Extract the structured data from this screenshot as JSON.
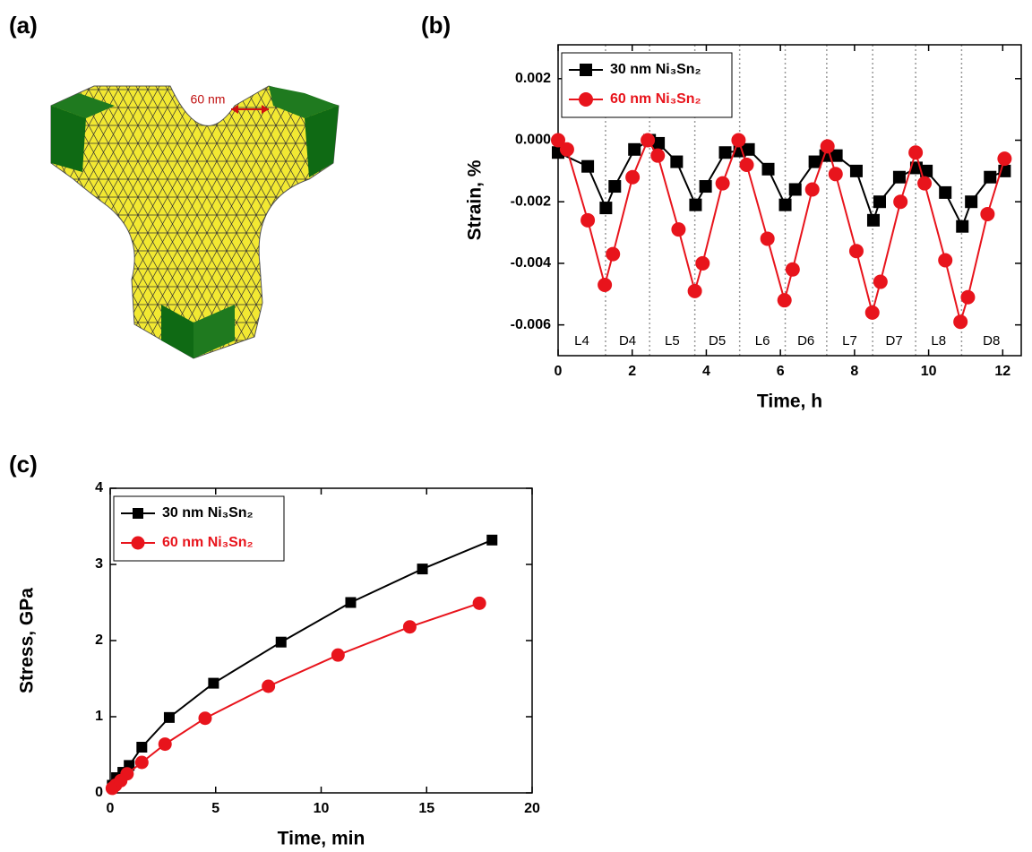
{
  "figure_a": {
    "label": "(a)",
    "annotation": "60 nm"
  },
  "chart_data": [
    {
      "type": "line",
      "label": "(b)",
      "x_label": "Time, h",
      "y_label": "Strain, %",
      "xlim": [
        0,
        12.5
      ],
      "xticks": [
        0,
        2,
        4,
        6,
        8,
        10,
        12
      ],
      "ylim": [
        -0.007,
        0.0031
      ],
      "yticks": [
        -0.006,
        -0.004,
        -0.002,
        {
          "value": 0,
          "label": "0.000"
        },
        0.002
      ],
      "legend": "upper left",
      "dividers": [
        1.28,
        2.47,
        3.69,
        4.9,
        6.13,
        7.25,
        8.49,
        9.65,
        10.89
      ],
      "period_labels": [
        "L4",
        "D4",
        "L5",
        "D5",
        "L6",
        "D6",
        "L7",
        "D7",
        "L8",
        "D8"
      ],
      "series": [
        {
          "name": "30 nm Ni₃Sn₂",
          "color": "#000000",
          "marker": "square",
          "x": [
            0,
            0.8,
            1.29,
            1.53,
            2.06,
            2.47,
            2.71,
            3.2,
            3.71,
            3.98,
            4.51,
            4.9,
            5.14,
            5.67,
            6.13,
            6.4,
            6.93,
            7.22,
            7.51,
            8.05,
            8.51,
            8.68,
            9.21,
            9.67,
            9.94,
            10.45,
            10.91,
            11.15,
            11.66,
            12.05
          ],
          "values": [
            -0.0004,
            -0.00085,
            -0.0022,
            -0.0015,
            -0.0003,
            0,
            -0.0001,
            -0.0007,
            -0.0021,
            -0.0015,
            -0.0004,
            -0.00035,
            -0.0003,
            -0.00094,
            -0.0021,
            -0.0016,
            -0.0007,
            -0.0005,
            -0.0005,
            -0.001,
            -0.0026,
            -0.002,
            -0.0012,
            -0.0009,
            -0.001,
            -0.0017,
            -0.0028,
            -0.002,
            -0.0012,
            -0.001
          ]
        },
        {
          "name": "60 nm Ni₃Sn₂",
          "color": "#e8141c",
          "marker": "circle",
          "x": [
            0,
            0.24,
            0.8,
            1.26,
            1.48,
            2.01,
            2.42,
            2.69,
            3.25,
            3.69,
            3.9,
            4.44,
            4.87,
            5.09,
            5.65,
            6.11,
            6.33,
            6.86,
            7.27,
            7.49,
            8.05,
            8.48,
            8.7,
            9.24,
            9.65,
            9.89,
            10.45,
            10.86,
            11.06,
            11.59,
            12.05
          ],
          "values": [
            0,
            -0.0003,
            -0.0026,
            -0.0047,
            -0.0037,
            -0.0012,
            0,
            -0.0005,
            -0.0029,
            -0.0049,
            -0.004,
            -0.0014,
            0,
            -0.0008,
            -0.0032,
            -0.0052,
            -0.0042,
            -0.0016,
            -0.0002,
            -0.0011,
            -0.0036,
            -0.0056,
            -0.0046,
            -0.002,
            -0.0004,
            -0.0014,
            -0.0039,
            -0.0059,
            -0.0051,
            -0.0024,
            -0.0006
          ]
        }
      ]
    },
    {
      "type": "line",
      "label": "(c)",
      "x_label": "Time, min",
      "y_label": "Stress, GPa",
      "xlim": [
        0,
        20
      ],
      "xticks": [
        0,
        5,
        10,
        15,
        20
      ],
      "ylim": [
        0,
        4
      ],
      "yticks": [
        0,
        1,
        2,
        3,
        4
      ],
      "legend": "upper left",
      "series": [
        {
          "name": "30 nm Ni₃Sn₂",
          "color": "#000000",
          "marker": "square",
          "x": [
            0.1,
            0.3,
            0.6,
            0.9,
            1.5,
            2.8,
            4.9,
            8.1,
            11.4,
            14.8,
            18.1
          ],
          "values": [
            0.1,
            0.2,
            0.27,
            0.36,
            0.6,
            0.99,
            1.44,
            1.98,
            2.5,
            2.94,
            3.32
          ]
        },
        {
          "name": "60 nm Ni₃Sn₂",
          "color": "#e8141c",
          "marker": "circle",
          "x": [
            0.1,
            0.25,
            0.5,
            0.8,
            1.5,
            2.6,
            4.5,
            7.5,
            10.8,
            14.2,
            17.5
          ],
          "values": [
            0.06,
            0.1,
            0.16,
            0.25,
            0.4,
            0.64,
            0.98,
            1.4,
            1.81,
            2.18,
            2.49
          ]
        }
      ]
    }
  ]
}
